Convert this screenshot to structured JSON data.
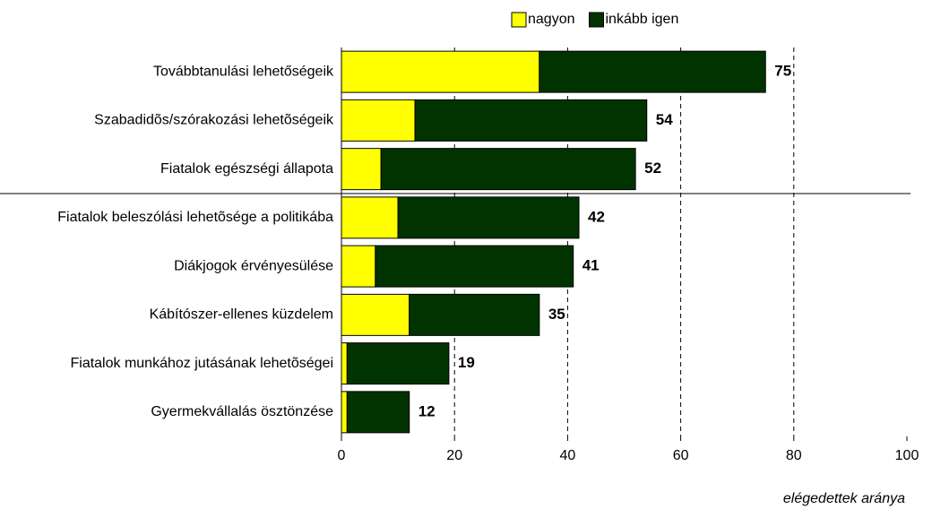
{
  "chart_data": {
    "type": "stacked_barh",
    "categories": [
      "Továbbtanulási lehetőségeik",
      "Szabadidõs/szórakozási lehetõségeik",
      "Fiatalok egészségi állapota",
      "Fiatalok beleszólási lehetõsége a politikába",
      "Diákjogok érvényesülése",
      "Kábítószer-ellenes küzdelem",
      "Fiatalok munkához jutásának lehetõségei",
      "Gyermekvállalás ösztönzése"
    ],
    "series": [
      {
        "name": "nagyon",
        "color": "#ffff00",
        "values": [
          35,
          13,
          7,
          10,
          6,
          12,
          1,
          1
        ]
      },
      {
        "name": "inkább igen",
        "color": "#003300",
        "values": [
          40,
          41,
          45,
          32,
          35,
          23,
          18,
          11
        ]
      }
    ],
    "totals": [
      "75",
      "54",
      "52",
      "42",
      "41",
      "35",
      "19",
      "12"
    ],
    "xlabel": "elégedettek aránya",
    "xlim": [
      0,
      100
    ],
    "xticks": [
      0,
      20,
      40,
      60,
      80,
      100
    ],
    "grid": true,
    "legend": "top"
  }
}
